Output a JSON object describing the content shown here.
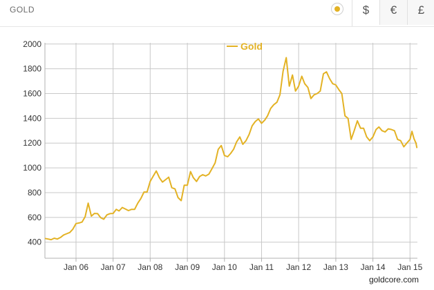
{
  "header": {
    "title": "GOLD"
  },
  "currency_tabs": [
    {
      "symbol": "$",
      "active": true
    },
    {
      "symbol": "€",
      "active": false
    },
    {
      "symbol": "£",
      "active": false
    }
  ],
  "credit": "goldcore.com",
  "colors": {
    "series": "#e3b224",
    "grid": "#c8c8c8",
    "axis": "#b0b0b0"
  },
  "chart_data": {
    "type": "line",
    "title": "",
    "xlabel": "",
    "ylabel": "",
    "x_unit": "date",
    "xlim": [
      "2005-03-01",
      "2015-03-15"
    ],
    "ylim": [
      270,
      2010
    ],
    "y_ticks": [
      400,
      600,
      800,
      1000,
      1200,
      1400,
      1600,
      1800,
      2000
    ],
    "x_ticks": [
      {
        "date": "2006-01-01",
        "label": "Jan 06"
      },
      {
        "date": "2007-01-01",
        "label": "Jan 07"
      },
      {
        "date": "2008-01-01",
        "label": "Jan 08"
      },
      {
        "date": "2009-01-01",
        "label": "Jan 09"
      },
      {
        "date": "2010-01-01",
        "label": "Jan 10"
      },
      {
        "date": "2011-01-01",
        "label": "Jan 11"
      },
      {
        "date": "2012-01-01",
        "label": "Jan 12"
      },
      {
        "date": "2013-01-01",
        "label": "Jan 13"
      },
      {
        "date": "2014-01-01",
        "label": "Jan 14"
      },
      {
        "date": "2015-01-01",
        "label": "Jan 15"
      }
    ],
    "grid": true,
    "legend": "top-center",
    "series": [
      {
        "name": "Gold",
        "color": "#e3b224",
        "points": [
          [
            "2005-03-01",
            430
          ],
          [
            "2005-04-01",
            425
          ],
          [
            "2005-05-01",
            420
          ],
          [
            "2005-06-01",
            432
          ],
          [
            "2005-07-01",
            425
          ],
          [
            "2005-08-01",
            438
          ],
          [
            "2005-09-01",
            458
          ],
          [
            "2005-10-01",
            468
          ],
          [
            "2005-11-01",
            478
          ],
          [
            "2005-12-01",
            505
          ],
          [
            "2006-01-01",
            550
          ],
          [
            "2006-02-01",
            555
          ],
          [
            "2006-03-01",
            562
          ],
          [
            "2006-04-01",
            605
          ],
          [
            "2006-05-01",
            715
          ],
          [
            "2006-06-01",
            610
          ],
          [
            "2006-07-01",
            632
          ],
          [
            "2006-08-01",
            630
          ],
          [
            "2006-09-01",
            598
          ],
          [
            "2006-10-01",
            585
          ],
          [
            "2006-11-01",
            620
          ],
          [
            "2006-12-01",
            630
          ],
          [
            "2007-01-01",
            632
          ],
          [
            "2007-02-01",
            665
          ],
          [
            "2007-03-01",
            652
          ],
          [
            "2007-04-01",
            680
          ],
          [
            "2007-05-01",
            668
          ],
          [
            "2007-06-01",
            655
          ],
          [
            "2007-07-01",
            665
          ],
          [
            "2007-08-01",
            665
          ],
          [
            "2007-09-01",
            715
          ],
          [
            "2007-10-01",
            752
          ],
          [
            "2007-11-01",
            805
          ],
          [
            "2007-12-01",
            805
          ],
          [
            "2008-01-01",
            890
          ],
          [
            "2008-02-01",
            935
          ],
          [
            "2008-03-01",
            975
          ],
          [
            "2008-04-01",
            920
          ],
          [
            "2008-05-01",
            885
          ],
          [
            "2008-06-01",
            905
          ],
          [
            "2008-07-01",
            925
          ],
          [
            "2008-08-01",
            840
          ],
          [
            "2008-09-01",
            830
          ],
          [
            "2008-10-01",
            760
          ],
          [
            "2008-11-01",
            735
          ],
          [
            "2008-12-01",
            860
          ],
          [
            "2009-01-01",
            860
          ],
          [
            "2009-02-01",
            970
          ],
          [
            "2009-03-01",
            920
          ],
          [
            "2009-04-01",
            890
          ],
          [
            "2009-05-01",
            930
          ],
          [
            "2009-06-01",
            945
          ],
          [
            "2009-07-01",
            935
          ],
          [
            "2009-08-01",
            950
          ],
          [
            "2009-09-01",
            995
          ],
          [
            "2009-10-01",
            1040
          ],
          [
            "2009-11-01",
            1150
          ],
          [
            "2009-12-01",
            1180
          ],
          [
            "2010-01-01",
            1100
          ],
          [
            "2010-02-01",
            1090
          ],
          [
            "2010-03-01",
            1115
          ],
          [
            "2010-04-01",
            1150
          ],
          [
            "2010-05-01",
            1210
          ],
          [
            "2010-06-01",
            1250
          ],
          [
            "2010-07-01",
            1190
          ],
          [
            "2010-08-01",
            1220
          ],
          [
            "2010-09-01",
            1270
          ],
          [
            "2010-10-01",
            1340
          ],
          [
            "2010-11-01",
            1375
          ],
          [
            "2010-12-01",
            1395
          ],
          [
            "2011-01-01",
            1360
          ],
          [
            "2011-02-01",
            1385
          ],
          [
            "2011-03-01",
            1420
          ],
          [
            "2011-04-01",
            1480
          ],
          [
            "2011-05-01",
            1510
          ],
          [
            "2011-06-01",
            1530
          ],
          [
            "2011-07-01",
            1590
          ],
          [
            "2011-08-01",
            1780
          ],
          [
            "2011-09-01",
            1890
          ],
          [
            "2011-10-01",
            1660
          ],
          [
            "2011-11-01",
            1750
          ],
          [
            "2011-12-01",
            1620
          ],
          [
            "2012-01-01",
            1660
          ],
          [
            "2012-02-01",
            1740
          ],
          [
            "2012-03-01",
            1680
          ],
          [
            "2012-04-01",
            1650
          ],
          [
            "2012-05-01",
            1560
          ],
          [
            "2012-06-01",
            1590
          ],
          [
            "2012-07-01",
            1600
          ],
          [
            "2012-08-01",
            1620
          ],
          [
            "2012-09-01",
            1760
          ],
          [
            "2012-10-01",
            1775
          ],
          [
            "2012-11-01",
            1720
          ],
          [
            "2012-12-01",
            1680
          ],
          [
            "2013-01-01",
            1670
          ],
          [
            "2013-02-01",
            1630
          ],
          [
            "2013-03-01",
            1600
          ],
          [
            "2013-04-01",
            1420
          ],
          [
            "2013-05-01",
            1400
          ],
          [
            "2013-06-01",
            1230
          ],
          [
            "2013-07-01",
            1300
          ],
          [
            "2013-08-01",
            1380
          ],
          [
            "2013-09-01",
            1320
          ],
          [
            "2013-10-01",
            1320
          ],
          [
            "2013-11-01",
            1250
          ],
          [
            "2013-12-01",
            1220
          ],
          [
            "2014-01-01",
            1250
          ],
          [
            "2014-02-01",
            1310
          ],
          [
            "2014-03-01",
            1330
          ],
          [
            "2014-04-01",
            1300
          ],
          [
            "2014-05-01",
            1290
          ],
          [
            "2014-06-01",
            1315
          ],
          [
            "2014-07-01",
            1310
          ],
          [
            "2014-08-01",
            1300
          ],
          [
            "2014-09-01",
            1230
          ],
          [
            "2014-10-01",
            1220
          ],
          [
            "2014-11-01",
            1170
          ],
          [
            "2014-12-01",
            1200
          ],
          [
            "2015-01-01",
            1230
          ],
          [
            "2015-01-20",
            1295
          ],
          [
            "2015-02-10",
            1235
          ],
          [
            "2015-03-01",
            1200
          ],
          [
            "2015-03-10",
            1160
          ]
        ]
      }
    ]
  }
}
